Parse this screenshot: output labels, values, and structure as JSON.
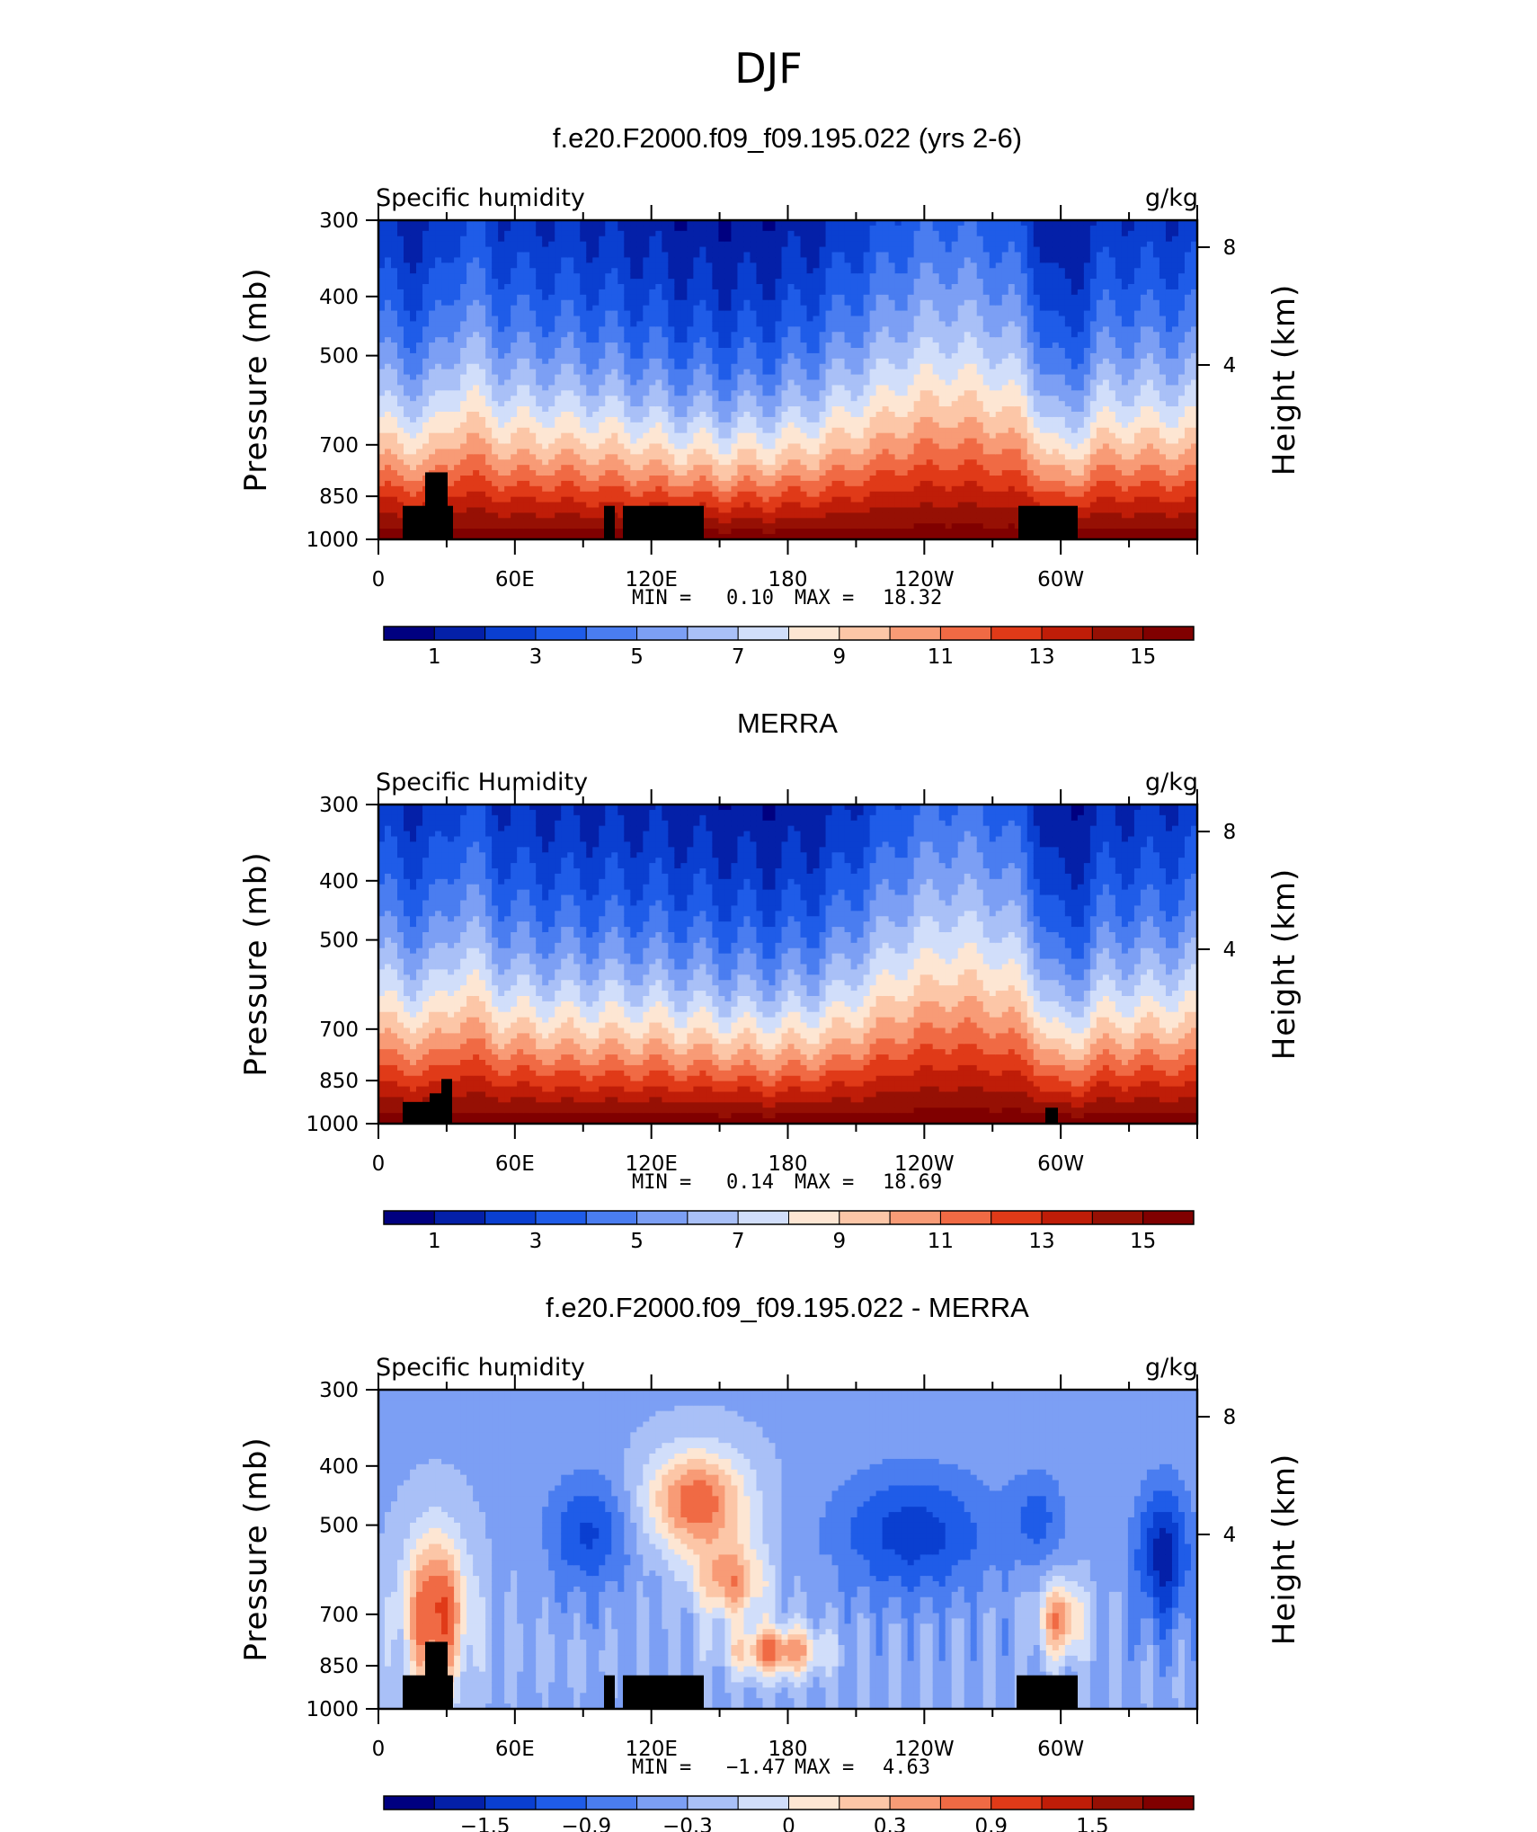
{
  "figure": {
    "title": "DJF"
  },
  "chart_data": [
    {
      "type": "heatmap",
      "title": "f.e20.F2000.f09_f09.195.022 (yrs 2-6)",
      "left_label": "Specific humidity",
      "right_label": "g/kg",
      "ylabel": "Pressure (mb)",
      "y2label": "Height (km)",
      "x_ticks": [
        "0",
        "60E",
        "120E",
        "180",
        "120W",
        "60W"
      ],
      "y_ticks": [
        "300",
        "400",
        "500",
        "700",
        "850",
        "1000"
      ],
      "y2_ticks": [
        "8",
        "4"
      ],
      "stats": {
        "min_label": "MIN =",
        "min": "0.10",
        "max_label": "MAX =",
        "max": "18.32"
      },
      "colorbar_labels": [
        "1",
        "3",
        "5",
        "7",
        "9",
        "11",
        "13",
        "15"
      ],
      "colors": [
        "#000080",
        "#0420a8",
        "#0a3fd0",
        "#1f5ce8",
        "#4a7df0",
        "#7c9ff4",
        "#a9c0f7",
        "#d1defa",
        "#fde6d3",
        "#fcc6a7",
        "#f89b76",
        "#f06a44",
        "#e03a18",
        "#bf1d08",
        "#961004",
        "#800000"
      ],
      "field": "mean",
      "x_range": [
        0,
        360
      ],
      "y_range": [
        1000,
        300
      ]
    },
    {
      "type": "heatmap",
      "title": "MERRA",
      "left_label": "Specific Humidity",
      "right_label": "g/kg",
      "ylabel": "Pressure (mb)",
      "y2label": "Height (km)",
      "x_ticks": [
        "0",
        "60E",
        "120E",
        "180",
        "120W",
        "60W"
      ],
      "y_ticks": [
        "300",
        "400",
        "500",
        "700",
        "850",
        "1000"
      ],
      "y2_ticks": [
        "8",
        "4"
      ],
      "stats": {
        "min_label": "MIN =",
        "min": "0.14",
        "max_label": "MAX =",
        "max": "18.69"
      },
      "colorbar_labels": [
        "1",
        "3",
        "5",
        "7",
        "9",
        "11",
        "13",
        "15"
      ],
      "colors": [
        "#000080",
        "#0420a8",
        "#0a3fd0",
        "#1f5ce8",
        "#4a7df0",
        "#7c9ff4",
        "#a9c0f7",
        "#d1defa",
        "#fde6d3",
        "#fcc6a7",
        "#f89b76",
        "#f06a44",
        "#e03a18",
        "#bf1d08",
        "#961004",
        "#800000"
      ],
      "field": "obs",
      "x_range": [
        0,
        360
      ],
      "y_range": [
        1000,
        300
      ]
    },
    {
      "type": "heatmap",
      "title": "f.e20.F2000.f09_f09.195.022 - MERRA",
      "left_label": "Specific humidity",
      "right_label": "g/kg",
      "ylabel": "Pressure (mb)",
      "y2label": "Height (km)",
      "x_ticks": [
        "0",
        "60E",
        "120E",
        "180",
        "120W",
        "60W"
      ],
      "y_ticks": [
        "300",
        "400",
        "500",
        "700",
        "850",
        "1000"
      ],
      "y2_ticks": [
        "8",
        "4"
      ],
      "stats": {
        "min_label": "MIN =",
        "min": "−1.47",
        "max_label": "MAX =",
        "max": "4.63"
      },
      "colorbar_labels": [
        "−1.5",
        "−0.9",
        "−0.3",
        "0",
        "0.3",
        "0.9",
        "1.5"
      ],
      "colors": [
        "#000080",
        "#0420a8",
        "#0a3fd0",
        "#1f5ce8",
        "#4a7df0",
        "#7c9ff4",
        "#a9c0f7",
        "#d1defa",
        "#fde6d3",
        "#fcc6a7",
        "#f89b76",
        "#f06a44",
        "#e03a18",
        "#bf1d08",
        "#961004",
        "#800000"
      ],
      "field": "diff",
      "x_range": [
        0,
        360
      ],
      "y_range": [
        1000,
        300
      ]
    }
  ]
}
